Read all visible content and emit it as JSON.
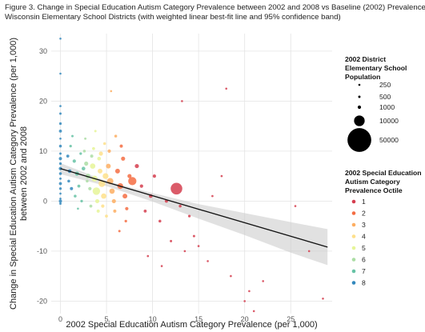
{
  "figure": {
    "title_line1": "Figure 3. Change in Special Education Autism Category Prevalence between 2002 and 2008 vs Baseline (2002) Prevalence,",
    "title_line2": "Wisconsin Elementary School Districts (with weighted linear best-fit line and 95% confidence band)"
  },
  "chart_data": {
    "type": "scatter",
    "xlabel": "2002 Special Education Autism Category Prevalence (per 1,000)",
    "ylabel_line1": "Change in Special Education Autism Category Prevalence (per 1,000)",
    "ylabel_line2": "between 2002 and 2008",
    "xlim": [
      -1,
      29.5
    ],
    "ylim": [
      -22.5,
      33.5
    ],
    "x_ticks": [
      0,
      5,
      10,
      15,
      20,
      25
    ],
    "y_ticks": [
      -20,
      -10,
      0,
      10,
      20,
      30
    ],
    "grid": true,
    "fit_line": {
      "x": [
        0,
        29
      ],
      "y": [
        6.5,
        -9.2
      ]
    },
    "confidence_band": {
      "x": [
        0,
        5,
        10,
        15,
        20,
        25,
        29
      ],
      "upper": [
        7.6,
        4.0,
        1.6,
        -0.6,
        -2.4,
        -4.2,
        -5.6
      ],
      "lower": [
        5.4,
        3.0,
        -0.1,
        -3.5,
        -6.8,
        -10.3,
        -12.8
      ]
    },
    "size_legend": {
      "title_line1": "2002 District",
      "title_line2": "Elementary School",
      "title_line3": "Population",
      "entries": [
        {
          "label": "250",
          "population": 250
        },
        {
          "label": "500",
          "population": 500
        },
        {
          "label": "1000",
          "population": 1000
        },
        {
          "label": "10000",
          "population": 10000
        },
        {
          "label": "50000",
          "population": 50000
        }
      ]
    },
    "color_legend": {
      "title_line1": "2002 Special Education",
      "title_line2": "Autism Category",
      "title_line3": "Prevalence Octile",
      "entries": [
        {
          "label": "1",
          "color": "#d53e4f"
        },
        {
          "label": "2",
          "color": "#f46d43"
        },
        {
          "label": "3",
          "color": "#fdae61"
        },
        {
          "label": "4",
          "color": "#fee08b"
        },
        {
          "label": "5",
          "color": "#e6f598"
        },
        {
          "label": "6",
          "color": "#abdda4"
        },
        {
          "label": "7",
          "color": "#66c2a5"
        },
        {
          "label": "8",
          "color": "#3288bd"
        }
      ]
    },
    "points": [
      {
        "x": 0,
        "y": 32.5,
        "pop": 250,
        "octile": 8
      },
      {
        "x": 0,
        "y": 25.5,
        "pop": 300,
        "octile": 8
      },
      {
        "x": 0,
        "y": 19,
        "pop": 400,
        "octile": 8
      },
      {
        "x": 0,
        "y": 17.5,
        "pop": 500,
        "octile": 8
      },
      {
        "x": 0,
        "y": 15.5,
        "pop": 600,
        "octile": 8
      },
      {
        "x": 0,
        "y": 14,
        "pop": 800,
        "octile": 8
      },
      {
        "x": 0,
        "y": 12.5,
        "pop": 400,
        "octile": 8
      },
      {
        "x": 0,
        "y": 11,
        "pop": 700,
        "octile": 8
      },
      {
        "x": 0,
        "y": 9.5,
        "pop": 500,
        "octile": 8
      },
      {
        "x": 0,
        "y": 8.5,
        "pop": 900,
        "octile": 8
      },
      {
        "x": 0,
        "y": 7.5,
        "pop": 600,
        "octile": 8
      },
      {
        "x": 0,
        "y": 6.5,
        "pop": 1000,
        "octile": 8
      },
      {
        "x": 0,
        "y": 5.5,
        "pop": 700,
        "octile": 8
      },
      {
        "x": 0,
        "y": 4.5,
        "pop": 500,
        "octile": 8
      },
      {
        "x": 0,
        "y": 3.5,
        "pop": 800,
        "octile": 8
      },
      {
        "x": 0,
        "y": 2.5,
        "pop": 600,
        "octile": 8
      },
      {
        "x": 0,
        "y": 1.5,
        "pop": 400,
        "octile": 8
      },
      {
        "x": 0,
        "y": 0.5,
        "pop": 300,
        "octile": 8
      },
      {
        "x": 0,
        "y": 0,
        "pop": 900,
        "octile": 8
      },
      {
        "x": 0,
        "y": -0.5,
        "pop": 500,
        "octile": 8
      },
      {
        "x": 0.8,
        "y": 9,
        "pop": 800,
        "octile": 8
      },
      {
        "x": 1,
        "y": 6,
        "pop": 1200,
        "octile": 8
      },
      {
        "x": 0.9,
        "y": 4,
        "pop": 700,
        "octile": 8
      },
      {
        "x": 1.2,
        "y": 2.5,
        "pop": 900,
        "octile": 8
      },
      {
        "x": 1.1,
        "y": 11,
        "pop": 600,
        "octile": 7
      },
      {
        "x": 1.5,
        "y": 8,
        "pop": 1000,
        "octile": 7
      },
      {
        "x": 1.8,
        "y": 5.5,
        "pop": 1500,
        "octile": 7
      },
      {
        "x": 2,
        "y": 3,
        "pop": 800,
        "octile": 7
      },
      {
        "x": 1.6,
        "y": 1,
        "pop": 700,
        "octile": 7
      },
      {
        "x": 2.2,
        "y": 9.5,
        "pop": 600,
        "octile": 7
      },
      {
        "x": 2.5,
        "y": 6.5,
        "pop": 1200,
        "octile": 7
      },
      {
        "x": 1.3,
        "y": 13,
        "pop": 500,
        "octile": 7
      },
      {
        "x": 2.3,
        "y": 0,
        "pop": 600,
        "octile": 7
      },
      {
        "x": 1.9,
        "y": -1.5,
        "pop": 400,
        "octile": 7
      },
      {
        "x": 2.6,
        "y": 10,
        "pop": 700,
        "octile": 6
      },
      {
        "x": 2.8,
        "y": 7.5,
        "pop": 1500,
        "octile": 6
      },
      {
        "x": 3,
        "y": 5,
        "pop": 2000,
        "octile": 6
      },
      {
        "x": 3.2,
        "y": 2.5,
        "pop": 1000,
        "octile": 6
      },
      {
        "x": 2.7,
        "y": 12.5,
        "pop": 500,
        "octile": 6
      },
      {
        "x": 3.3,
        "y": -1,
        "pop": 800,
        "octile": 6
      },
      {
        "x": 3.4,
        "y": 9,
        "pop": 900,
        "octile": 6
      },
      {
        "x": 2.9,
        "y": 4,
        "pop": 700,
        "octile": 6
      },
      {
        "x": 3.5,
        "y": 7,
        "pop": 2500,
        "octile": 5
      },
      {
        "x": 3.7,
        "y": 4.5,
        "pop": 3000,
        "octile": 5
      },
      {
        "x": 3.9,
        "y": 2,
        "pop": 5000,
        "octile": 5
      },
      {
        "x": 4,
        "y": 0,
        "pop": 1500,
        "octile": 5
      },
      {
        "x": 3.6,
        "y": 10.5,
        "pop": 800,
        "octile": 5
      },
      {
        "x": 4.1,
        "y": -2,
        "pop": 900,
        "octile": 5
      },
      {
        "x": 4.2,
        "y": 8.5,
        "pop": 1200,
        "octile": 5
      },
      {
        "x": 3.8,
        "y": 14,
        "pop": 500,
        "octile": 5
      },
      {
        "x": 4.3,
        "y": 6,
        "pop": 2000,
        "octile": 4
      },
      {
        "x": 4.5,
        "y": 3.5,
        "pop": 4000,
        "octile": 4
      },
      {
        "x": 4.7,
        "y": 1,
        "pop": 2500,
        "octile": 4
      },
      {
        "x": 4.6,
        "y": -1,
        "pop": 1000,
        "octile": 4
      },
      {
        "x": 4.4,
        "y": 9.5,
        "pop": 1500,
        "octile": 4
      },
      {
        "x": 4.8,
        "y": 11.5,
        "pop": 700,
        "octile": 4
      },
      {
        "x": 5,
        "y": -3,
        "pop": 800,
        "octile": 4
      },
      {
        "x": 4.9,
        "y": 5,
        "pop": 3000,
        "octile": 4
      },
      {
        "x": 5.2,
        "y": 7,
        "pop": 2000,
        "octile": 3
      },
      {
        "x": 5.4,
        "y": 4,
        "pop": 3500,
        "octile": 3
      },
      {
        "x": 5.6,
        "y": 2,
        "pop": 2500,
        "octile": 3
      },
      {
        "x": 5.8,
        "y": 0,
        "pop": 1500,
        "octile": 3
      },
      {
        "x": 5.3,
        "y": 10,
        "pop": 1000,
        "octile": 3
      },
      {
        "x": 5.9,
        "y": -2,
        "pop": 900,
        "octile": 3
      },
      {
        "x": 6,
        "y": 13,
        "pop": 700,
        "octile": 3
      },
      {
        "x": 5.5,
        "y": 22,
        "pop": 400,
        "octile": 3
      },
      {
        "x": 6.2,
        "y": 6,
        "pop": 2000,
        "octile": 2
      },
      {
        "x": 6.5,
        "y": 3,
        "pop": 3000,
        "octile": 2
      },
      {
        "x": 6.8,
        "y": 8.5,
        "pop": 1500,
        "octile": 2
      },
      {
        "x": 7,
        "y": 1,
        "pop": 2000,
        "octile": 2
      },
      {
        "x": 7.2,
        "y": -1.5,
        "pop": 1000,
        "octile": 2
      },
      {
        "x": 7.5,
        "y": 5,
        "pop": 1500,
        "octile": 2
      },
      {
        "x": 6.6,
        "y": 11,
        "pop": 900,
        "octile": 2
      },
      {
        "x": 7.8,
        "y": 4,
        "pop": 6000,
        "octile": 2
      },
      {
        "x": 7.1,
        "y": -4,
        "pop": 600,
        "octile": 2
      },
      {
        "x": 6.4,
        "y": -6,
        "pop": 500,
        "octile": 2
      },
      {
        "x": 8.3,
        "y": 7,
        "pop": 1500,
        "octile": 1
      },
      {
        "x": 8.8,
        "y": 3,
        "pop": 1000,
        "octile": 1
      },
      {
        "x": 9.2,
        "y": -2,
        "pop": 800,
        "octile": 1
      },
      {
        "x": 9.8,
        "y": 1,
        "pop": 1200,
        "octile": 1
      },
      {
        "x": 10.2,
        "y": 5,
        "pop": 1000,
        "octile": 1
      },
      {
        "x": 10.8,
        "y": -4,
        "pop": 700,
        "octile": 1
      },
      {
        "x": 11.5,
        "y": 0,
        "pop": 900,
        "octile": 1
      },
      {
        "x": 12.6,
        "y": 2.5,
        "pop": 12000,
        "octile": 1
      },
      {
        "x": 12,
        "y": -8,
        "pop": 500,
        "octile": 1
      },
      {
        "x": 13,
        "y": -1,
        "pop": 700,
        "octile": 1
      },
      {
        "x": 13.5,
        "y": -10,
        "pop": 400,
        "octile": 1
      },
      {
        "x": 14,
        "y": -3,
        "pop": 600,
        "octile": 1
      },
      {
        "x": 13.2,
        "y": 20,
        "pop": 400,
        "octile": 1
      },
      {
        "x": 14.5,
        "y": -7,
        "pop": 500,
        "octile": 1
      },
      {
        "x": 9.5,
        "y": -11,
        "pop": 400,
        "octile": 1
      },
      {
        "x": 11,
        "y": -13,
        "pop": 350,
        "octile": 1
      },
      {
        "x": 15,
        "y": -9,
        "pop": 400,
        "octile": 1
      },
      {
        "x": 16,
        "y": -12,
        "pop": 350,
        "octile": 1
      },
      {
        "x": 16.5,
        "y": 1,
        "pop": 400,
        "octile": 1
      },
      {
        "x": 17.5,
        "y": 5,
        "pop": 400,
        "octile": 1
      },
      {
        "x": 18,
        "y": 22.5,
        "pop": 300,
        "octile": 1
      },
      {
        "x": 18.5,
        "y": -15,
        "pop": 300,
        "octile": 1
      },
      {
        "x": 20,
        "y": -20,
        "pop": 300,
        "octile": 1
      },
      {
        "x": 20.5,
        "y": -18,
        "pop": 300,
        "octile": 1
      },
      {
        "x": 21,
        "y": -22,
        "pop": 250,
        "octile": 1
      },
      {
        "x": 22,
        "y": -16,
        "pop": 300,
        "octile": 1
      },
      {
        "x": 25.5,
        "y": -1,
        "pop": 300,
        "octile": 1
      },
      {
        "x": 27,
        "y": -10,
        "pop": 300,
        "octile": 1
      },
      {
        "x": 28.5,
        "y": -19.5,
        "pop": 300,
        "octile": 1
      }
    ]
  }
}
